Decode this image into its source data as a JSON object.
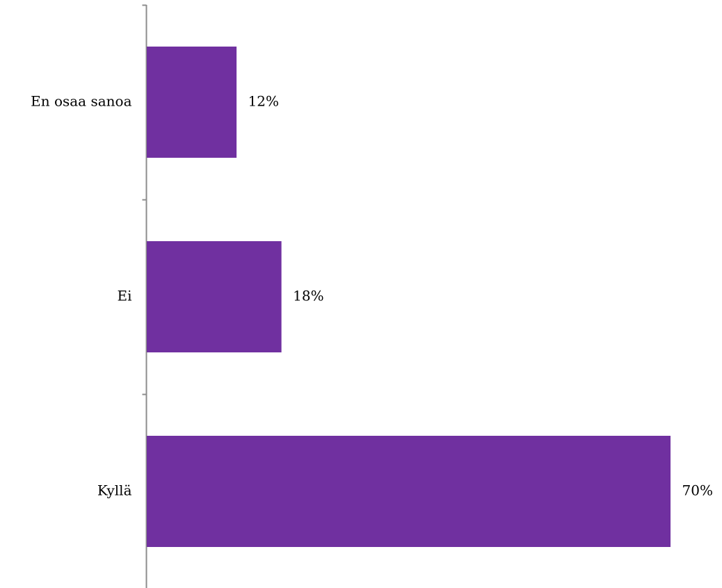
{
  "chart_data": {
    "type": "bar",
    "orientation": "horizontal",
    "categories": [
      "En osaa sanoa",
      "Ei",
      "Kyllä"
    ],
    "values": [
      12,
      18,
      70
    ],
    "value_labels": [
      "12%",
      "18%",
      "70%"
    ],
    "value_unit": "%",
    "xlim": [
      0,
      70
    ],
    "grid": false,
    "legend": "none",
    "colors": {
      "bar": "#7030a0",
      "axis": "#8c8c8c",
      "text": "#000000"
    }
  }
}
